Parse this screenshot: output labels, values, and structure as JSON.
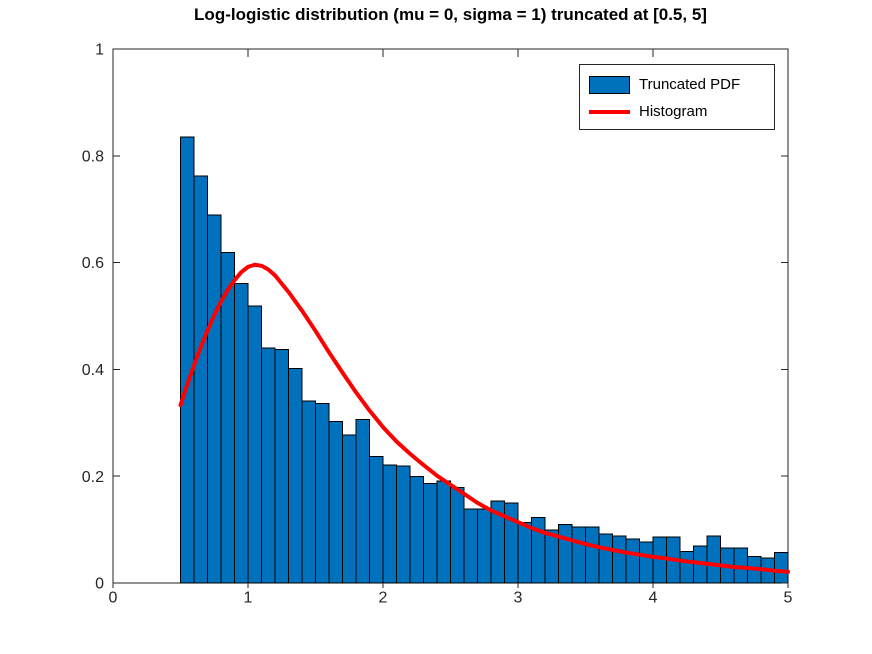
{
  "figure": {
    "title": "Log-logistic distribution (mu = 0, sigma = 1) truncated at [0.5, 5]",
    "background_color": "#ffffff",
    "axis_color": "#262626",
    "tick_label_color": "#262626"
  },
  "legend": {
    "items": [
      {
        "label": "Truncated PDF",
        "type": "patch",
        "color": "#0072BD",
        "edge_color": "#000000"
      },
      {
        "label": "Histogram",
        "type": "line",
        "color": "#FF0000"
      }
    ]
  },
  "axes": {
    "x": {
      "min": 0,
      "max": 5,
      "ticks": [
        0,
        1,
        2,
        3,
        4,
        5
      ],
      "tick_labels": [
        "0",
        "1",
        "2",
        "3",
        "4",
        "5"
      ]
    },
    "y": {
      "min": 0,
      "max": 1,
      "ticks": [
        0,
        0.2,
        0.4,
        0.6,
        0.8,
        1
      ],
      "tick_labels": [
        "0",
        "0.2",
        "0.4",
        "0.6",
        "0.8",
        "1"
      ]
    }
  },
  "chart_data": {
    "type": "histogram+line",
    "title": "Log-logistic distribution (mu = 0, sigma = 1) truncated at [0.5, 5]",
    "xlabel": "",
    "ylabel": "",
    "xlim": [
      0,
      5
    ],
    "ylim": [
      0,
      1
    ],
    "grid": false,
    "legend_position": "northeast",
    "bar_series": {
      "name": "Truncated PDF",
      "color": "#0072BD",
      "edge_color": "#000000",
      "bin_start": 0.5,
      "bin_width": 0.1,
      "heights": [
        0.835,
        0.762,
        0.689,
        0.619,
        0.561,
        0.519,
        0.44,
        0.437,
        0.402,
        0.341,
        0.336,
        0.302,
        0.277,
        0.306,
        0.237,
        0.221,
        0.219,
        0.199,
        0.186,
        0.191,
        0.179,
        0.139,
        0.139,
        0.154,
        0.15,
        0.113,
        0.123,
        0.099,
        0.11,
        0.105,
        0.105,
        0.092,
        0.088,
        0.082,
        0.077,
        0.086,
        0.086,
        0.059,
        0.069,
        0.088,
        0.066,
        0.066,
        0.05,
        0.047,
        0.057
      ]
    },
    "line_series": {
      "name": "Histogram",
      "color": "#FF0000",
      "line_width": 4,
      "points": [
        [
          0.5,
          0.333
        ],
        [
          0.55,
          0.372
        ],
        [
          0.6,
          0.408
        ],
        [
          0.65,
          0.442
        ],
        [
          0.7,
          0.473
        ],
        [
          0.75,
          0.502
        ],
        [
          0.8,
          0.527
        ],
        [
          0.85,
          0.549
        ],
        [
          0.9,
          0.567
        ],
        [
          0.95,
          0.582
        ],
        [
          1.0,
          0.592
        ],
        [
          1.05,
          0.596
        ],
        [
          1.1,
          0.594
        ],
        [
          1.15,
          0.587
        ],
        [
          1.2,
          0.576
        ],
        [
          1.3,
          0.545
        ],
        [
          1.4,
          0.51
        ],
        [
          1.5,
          0.472
        ],
        [
          1.6,
          0.432
        ],
        [
          1.7,
          0.394
        ],
        [
          1.8,
          0.357
        ],
        [
          1.9,
          0.323
        ],
        [
          2.0,
          0.292
        ],
        [
          2.1,
          0.265
        ],
        [
          2.2,
          0.242
        ],
        [
          2.3,
          0.221
        ],
        [
          2.4,
          0.201
        ],
        [
          2.5,
          0.184
        ],
        [
          2.6,
          0.167
        ],
        [
          2.7,
          0.15
        ],
        [
          2.8,
          0.136
        ],
        [
          2.9,
          0.125
        ],
        [
          3.0,
          0.114
        ],
        [
          3.1,
          0.103
        ],
        [
          3.2,
          0.094
        ],
        [
          3.3,
          0.087
        ],
        [
          3.4,
          0.08
        ],
        [
          3.5,
          0.073
        ],
        [
          3.6,
          0.067
        ],
        [
          3.7,
          0.062
        ],
        [
          3.8,
          0.057
        ],
        [
          3.9,
          0.053
        ],
        [
          4.0,
          0.049
        ],
        [
          4.1,
          0.046
        ],
        [
          4.2,
          0.042
        ],
        [
          4.3,
          0.039
        ],
        [
          4.4,
          0.036
        ],
        [
          4.5,
          0.033
        ],
        [
          4.6,
          0.03
        ],
        [
          4.7,
          0.028
        ],
        [
          4.8,
          0.026
        ],
        [
          4.9,
          0.023
        ],
        [
          5.0,
          0.021
        ]
      ]
    }
  }
}
